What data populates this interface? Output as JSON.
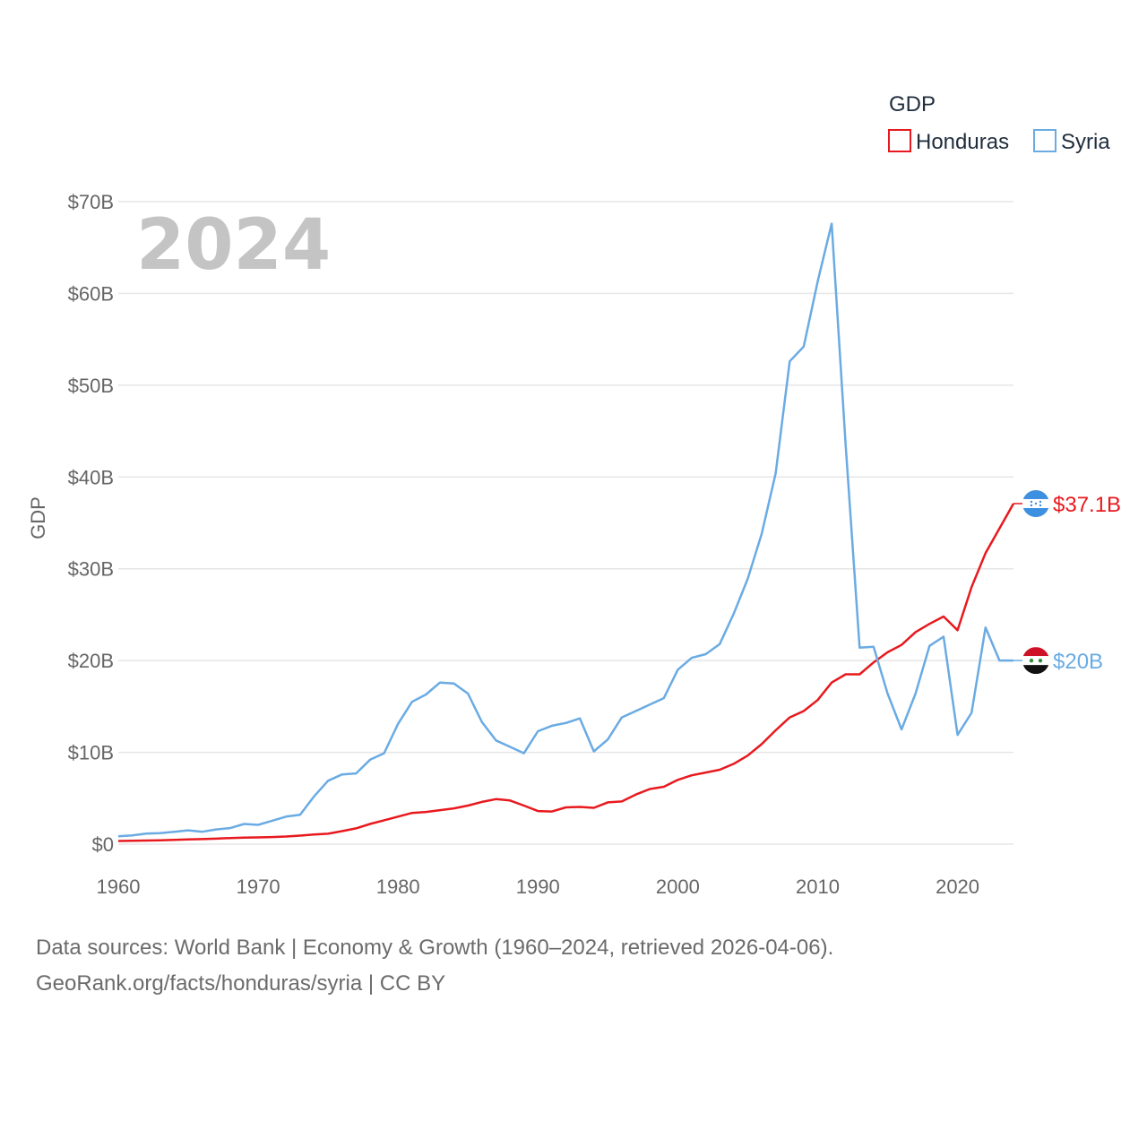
{
  "chart_data": {
    "type": "line",
    "title": "GDP",
    "ylabel": "GDP",
    "xlabel": "",
    "year_label": "2024",
    "xlim": [
      1960,
      2024
    ],
    "ylim": [
      0,
      70
    ],
    "x_ticks": [
      1960,
      1970,
      1980,
      1990,
      2000,
      2010,
      2020
    ],
    "y_ticks": [
      {
        "value": 0,
        "label": "$0"
      },
      {
        "value": 10,
        "label": "$10B"
      },
      {
        "value": 20,
        "label": "$20B"
      },
      {
        "value": 30,
        "label": "$30B"
      },
      {
        "value": 40,
        "label": "$40B"
      },
      {
        "value": 50,
        "label": "$50B"
      },
      {
        "value": 60,
        "label": "$60B"
      },
      {
        "value": 70,
        "label": "$70B"
      }
    ],
    "x": [
      1960,
      1961,
      1962,
      1963,
      1964,
      1965,
      1966,
      1967,
      1968,
      1969,
      1970,
      1971,
      1972,
      1973,
      1974,
      1975,
      1976,
      1977,
      1978,
      1979,
      1980,
      1981,
      1982,
      1983,
      1984,
      1985,
      1986,
      1987,
      1988,
      1989,
      1990,
      1991,
      1992,
      1993,
      1994,
      1995,
      1996,
      1997,
      1998,
      1999,
      2000,
      2001,
      2002,
      2003,
      2004,
      2005,
      2006,
      2007,
      2008,
      2009,
      2010,
      2011,
      2012,
      2013,
      2014,
      2015,
      2016,
      2017,
      2018,
      2019,
      2020,
      2021,
      2022,
      2023,
      2024
    ],
    "series": [
      {
        "name": "Honduras",
        "color": "#e8191e",
        "end_label": "$37.1B",
        "flag": "honduras-flag",
        "values": [
          0.34,
          0.36,
          0.39,
          0.42,
          0.46,
          0.51,
          0.55,
          0.6,
          0.66,
          0.7,
          0.73,
          0.77,
          0.83,
          0.93,
          1.05,
          1.13,
          1.42,
          1.72,
          2.2,
          2.6,
          3.0,
          3.4,
          3.5,
          3.7,
          3.9,
          4.2,
          4.6,
          4.9,
          4.75,
          4.2,
          3.6,
          3.55,
          4.0,
          4.05,
          3.95,
          4.55,
          4.65,
          5.4,
          6.0,
          6.25,
          7.0,
          7.5,
          7.8,
          8.1,
          8.75,
          9.65,
          10.9,
          12.4,
          13.8,
          14.5,
          15.7,
          17.6,
          18.5,
          18.5,
          19.8,
          20.9,
          21.7,
          23.1,
          24.0,
          24.8,
          23.3,
          28.0,
          31.7,
          34.4,
          37.1
        ]
      },
      {
        "name": "Syria",
        "color": "#6aabe3",
        "end_label": "$20B",
        "flag": "syria-flag",
        "values": [
          0.86,
          0.95,
          1.15,
          1.2,
          1.35,
          1.5,
          1.35,
          1.6,
          1.75,
          2.2,
          2.1,
          2.55,
          3.0,
          3.2,
          5.2,
          6.9,
          7.6,
          7.7,
          9.2,
          9.9,
          13.1,
          15.5,
          16.3,
          17.6,
          17.5,
          16.4,
          13.3,
          11.3,
          10.6,
          9.9,
          12.3,
          12.9,
          13.2,
          13.7,
          10.1,
          11.4,
          13.8,
          14.5,
          15.2,
          15.9,
          19.0,
          20.3,
          20.7,
          21.8,
          25.1,
          28.9,
          33.8,
          40.4,
          52.6,
          54.2,
          61.3,
          67.6,
          43.5,
          21.4,
          21.5,
          16.4,
          12.5,
          16.4,
          21.6,
          22.6,
          11.9,
          14.3,
          23.6,
          20.0,
          20.0
        ]
      }
    ],
    "legend": {
      "title": "GDP",
      "position": "top-right"
    }
  },
  "footer": {
    "line1": "Data sources: World Bank | Economy & Growth (1960–2024, retrieved 2026-04-06).",
    "line2": "GeoRank.org/facts/honduras/syria | CC BY"
  }
}
